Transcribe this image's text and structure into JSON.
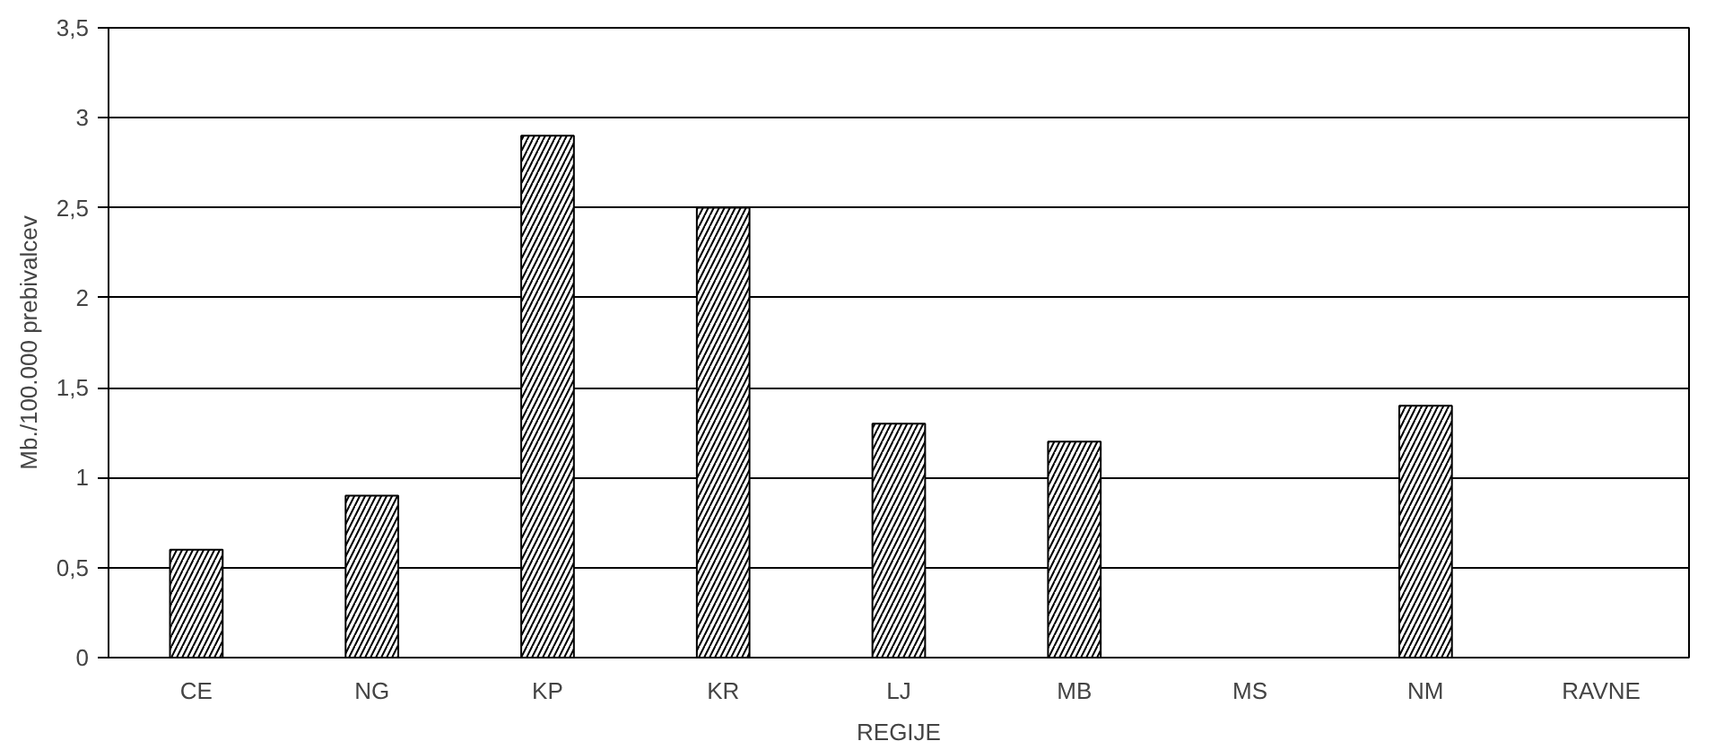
{
  "chart_data": {
    "type": "bar",
    "xlabel": "REGIJE",
    "ylabel": "Mb./100.000 prebivalcev",
    "categories": [
      "CE",
      "NG",
      "KP",
      "KR",
      "LJ",
      "MB",
      "MS",
      "NM",
      "RAVNE"
    ],
    "values": [
      0.6,
      0.9,
      2.9,
      2.5,
      1.3,
      1.2,
      null,
      1.4,
      null
    ],
    "color": "#ffffff",
    "ylim": [
      0,
      3.5
    ],
    "yticks": [
      0,
      {
        "value": 0.5,
        "label": "0,5"
      },
      1,
      {
        "value": 1.5,
        "label": "1,5"
      },
      2,
      {
        "value": 2.5,
        "label": "2,5"
      },
      3,
      {
        "value": 3.5,
        "label": "3,5"
      }
    ],
    "grid": "y"
  }
}
